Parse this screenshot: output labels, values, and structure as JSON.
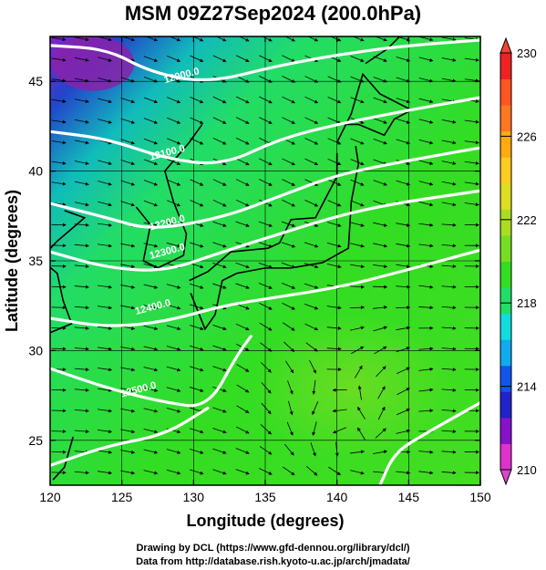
{
  "title": "MSM 09Z27Sep2024 (200.0hPa)",
  "map": {
    "xlabel": "Longitude (degrees)",
    "ylabel": "Latitude  (degrees)",
    "lon_range": [
      120,
      150
    ],
    "lat_range": [
      22.5,
      47.5
    ],
    "lon_ticks": [
      120,
      125,
      130,
      135,
      140,
      145,
      150
    ],
    "lat_ticks": [
      25,
      30,
      35,
      40,
      45
    ],
    "contours": [
      {
        "label": "12000.0",
        "points": [
          [
            120,
            47.0
          ],
          [
            124,
            46.8
          ],
          [
            127,
            45.5
          ],
          [
            131,
            44.9
          ],
          [
            136,
            45.9
          ],
          [
            141,
            46.6
          ],
          [
            145,
            47.0
          ],
          [
            150,
            47.3
          ]
        ]
      },
      {
        "label": "12100.0",
        "points": [
          [
            120,
            42.2
          ],
          [
            124,
            41.8
          ],
          [
            128,
            40.7
          ],
          [
            132,
            40.3
          ],
          [
            136,
            41.8
          ],
          [
            140,
            42.6
          ],
          [
            145,
            43.4
          ],
          [
            150,
            44.1
          ]
        ]
      },
      {
        "label": "12200.0",
        "points": [
          [
            120,
            38.2
          ],
          [
            124,
            37.4
          ],
          [
            127,
            36.7
          ],
          [
            132,
            37.4
          ],
          [
            136,
            38.6
          ],
          [
            140,
            39.8
          ],
          [
            145,
            40.6
          ],
          [
            150,
            41.3
          ]
        ]
      },
      {
        "label": "12300.0",
        "points": [
          [
            120,
            35.5
          ],
          [
            124,
            34.6
          ],
          [
            128,
            34.4
          ],
          [
            132,
            35.5
          ],
          [
            136,
            36.5
          ],
          [
            140,
            37.5
          ],
          [
            144,
            38.2
          ],
          [
            150,
            38.9
          ]
        ]
      },
      {
        "label": "12400.0",
        "points": [
          [
            120,
            31.8
          ],
          [
            124,
            31.3
          ],
          [
            128,
            31.6
          ],
          [
            132,
            32.5
          ],
          [
            136,
            33.0
          ],
          [
            140,
            33.5
          ],
          [
            144,
            34.3
          ],
          [
            150,
            35.6
          ]
        ]
      },
      {
        "label": "12500.0",
        "points": [
          [
            120,
            29.0
          ],
          [
            124,
            27.9
          ],
          [
            128,
            27.1
          ],
          [
            131,
            26.8
          ],
          [
            133,
            29.7
          ],
          [
            134,
            30.8
          ]
        ]
      },
      {
        "label": "",
        "points": [
          [
            120,
            23.6
          ],
          [
            124,
            24.7
          ],
          [
            128,
            25.3
          ],
          [
            131,
            26.8
          ]
        ]
      },
      {
        "label": "",
        "points": [
          [
            143,
            22.5
          ],
          [
            144,
            24.3
          ],
          [
            146,
            25.3
          ],
          [
            150,
            27.1
          ]
        ]
      }
    ],
    "contour_label_lons": [
      [
        128,
        44.9
      ],
      [
        127,
        40.6
      ],
      [
        127,
        36.7
      ],
      [
        127,
        35.1
      ],
      [
        126,
        32.0
      ],
      [
        125,
        27.4
      ]
    ]
  },
  "colorbar": {
    "ticks": [
      230,
      226,
      222,
      218,
      214,
      210
    ],
    "min": 210,
    "max": 230,
    "colors": [
      "#dd33cc",
      "#8811cc",
      "#2222cc",
      "#1155ee",
      "#11aaee",
      "#11dddd",
      "#22dd66",
      "#33dd22",
      "#77dd22",
      "#aadd22",
      "#dddd22",
      "#ffcc22",
      "#ffaa11",
      "#ff7722",
      "#ff5522",
      "#ee2222"
    ]
  },
  "credits": {
    "line1": "Drawing by DCL (https://www.gfd-dennou.org/library/dcl/)",
    "line2": "Data from http://database.rish.kyoto-u.ac.jp/arch/jmadata/"
  }
}
